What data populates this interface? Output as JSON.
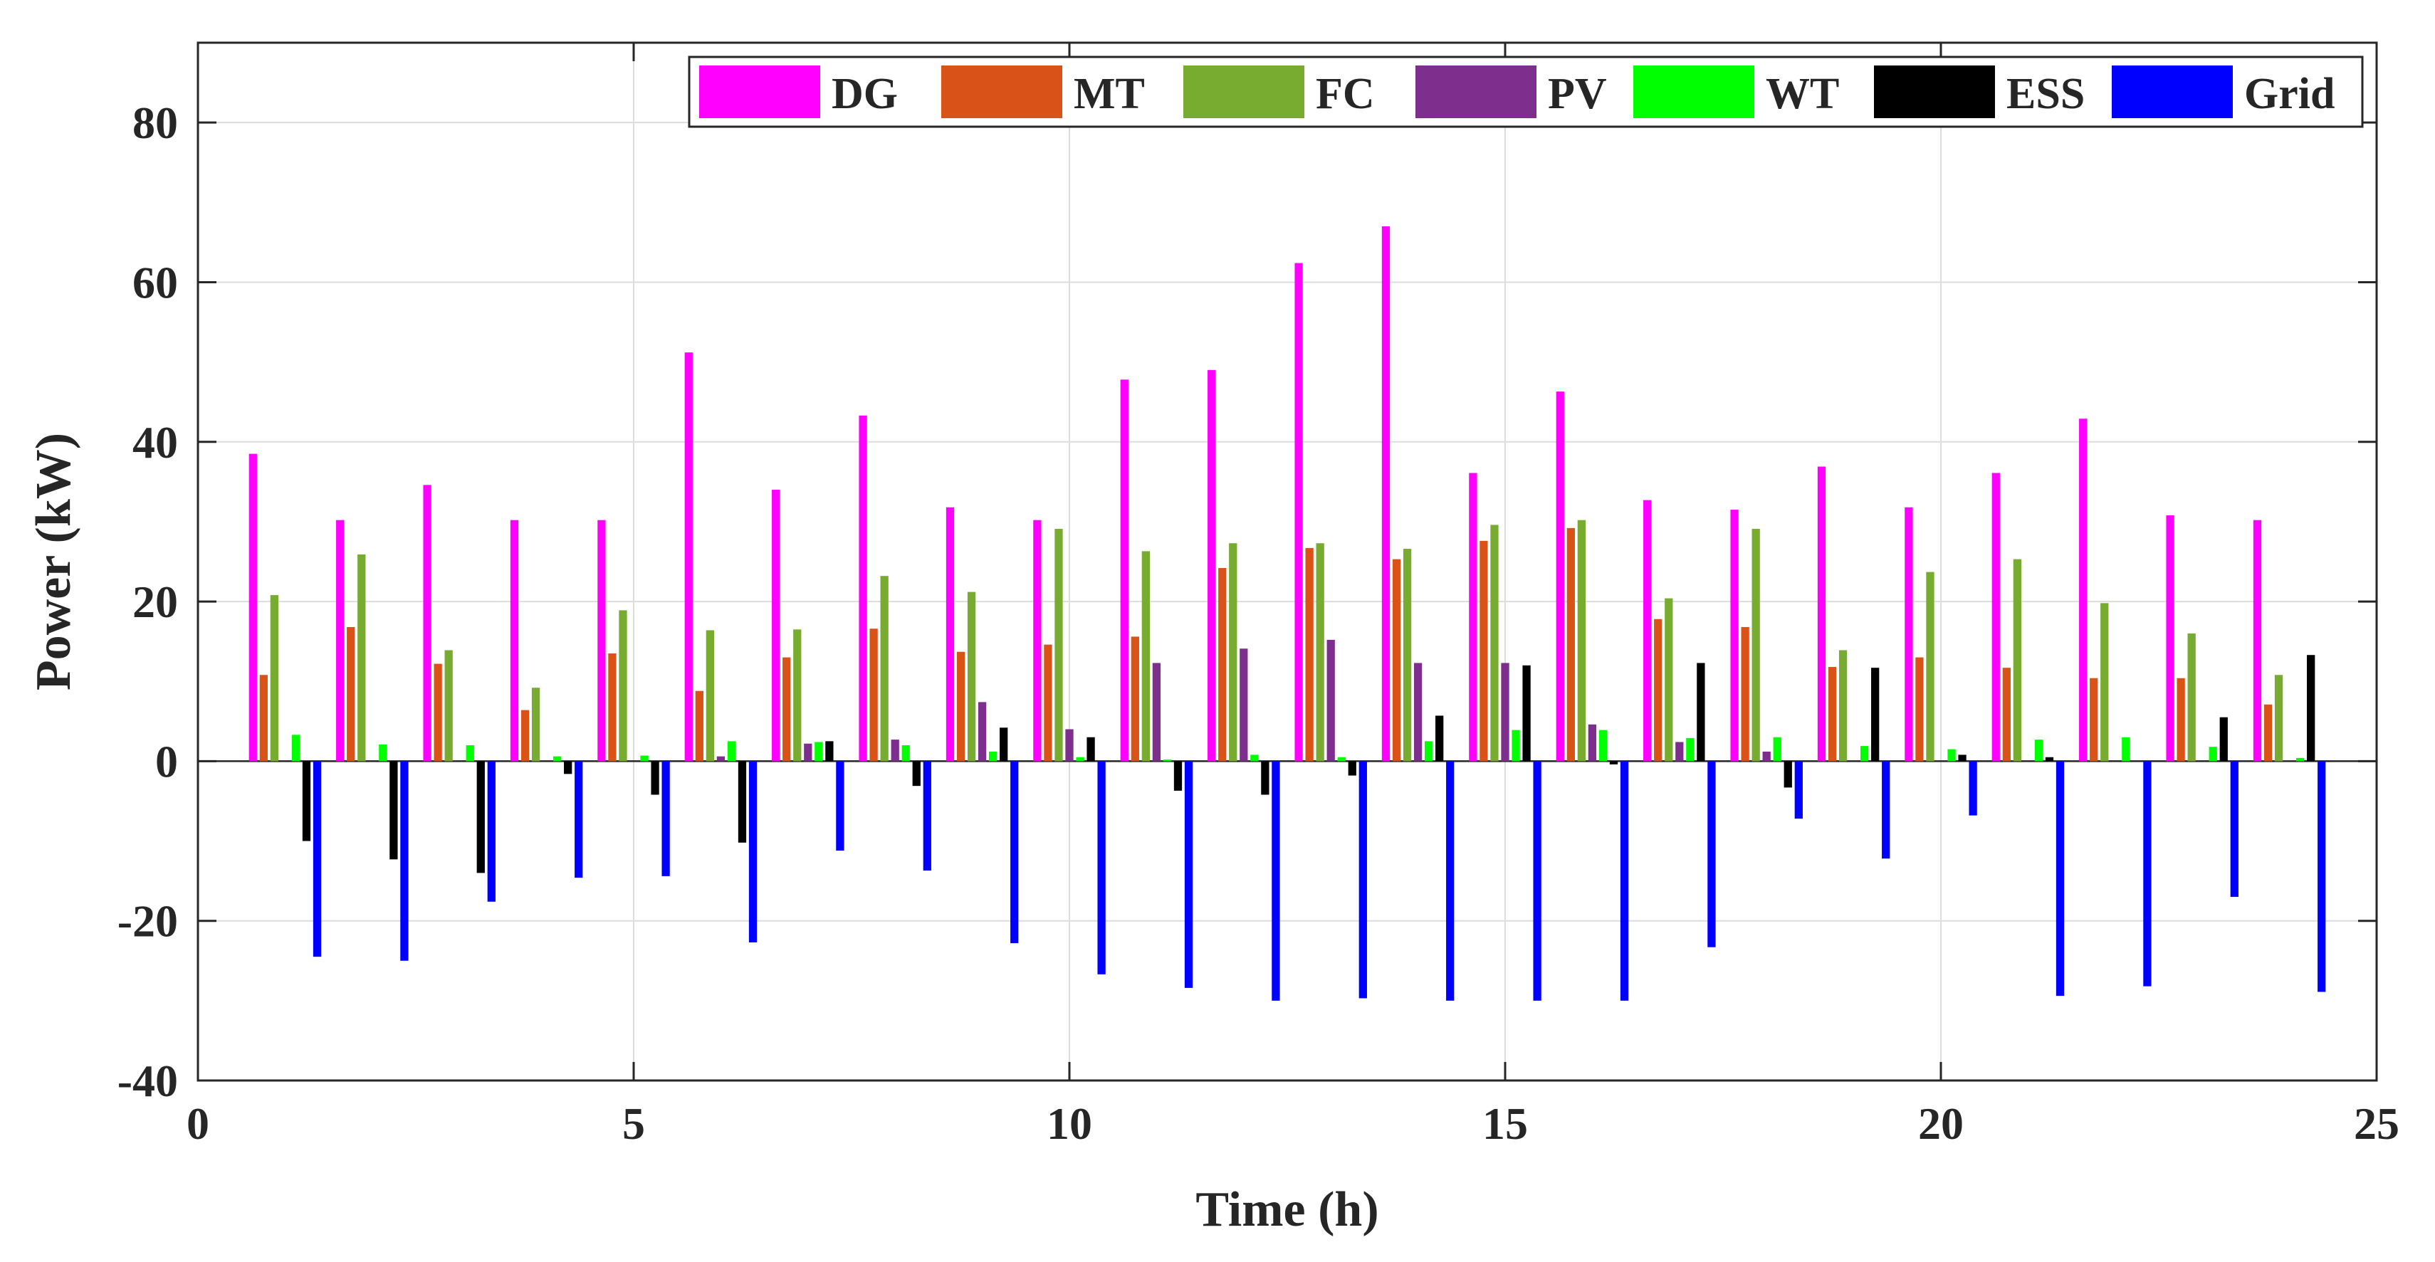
{
  "chart_data": {
    "type": "bar",
    "title": "",
    "xlabel": "Time (h)",
    "ylabel": "Power (kW)",
    "xlim": [
      0,
      25
    ],
    "ylim": [
      -40,
      90
    ],
    "xticks": [
      "0",
      "5",
      "10",
      "15",
      "20",
      "25"
    ],
    "xtick_values": [
      0,
      5,
      10,
      15,
      20,
      25
    ],
    "yticks": [
      "-40",
      "-20",
      "0",
      "20",
      "40",
      "60",
      "80"
    ],
    "ytick_values": [
      -40,
      -20,
      0,
      20,
      40,
      60,
      80
    ],
    "grid": true,
    "legend_position": "top-right",
    "x": [
      1,
      2,
      3,
      4,
      5,
      6,
      7,
      8,
      9,
      10,
      11,
      12,
      13,
      14,
      15,
      16,
      17,
      18,
      19,
      20,
      21,
      22,
      23,
      24
    ],
    "series": [
      {
        "name": "DG",
        "color": "#FF00FF",
        "values": [
          38.5,
          30.2,
          34.6,
          30.2,
          30.2,
          51.2,
          34.0,
          43.3,
          31.8,
          30.2,
          47.8,
          49.0,
          62.4,
          67.0,
          36.1,
          46.3,
          32.7,
          31.5,
          36.9,
          31.8,
          36.1,
          42.9,
          30.8,
          30.2
        ]
      },
      {
        "name": "MT",
        "color": "#D95319",
        "values": [
          10.8,
          16.8,
          12.2,
          6.4,
          13.5,
          8.8,
          13.0,
          16.6,
          13.7,
          14.6,
          15.6,
          24.2,
          26.7,
          25.3,
          27.6,
          29.2,
          17.8,
          16.8,
          11.8,
          13.0,
          11.7,
          10.4,
          10.4,
          7.1
        ]
      },
      {
        "name": "FC",
        "color": "#77AC30",
        "values": [
          20.8,
          25.9,
          13.9,
          9.2,
          18.9,
          16.4,
          16.5,
          23.2,
          21.2,
          29.1,
          26.3,
          27.3,
          27.3,
          26.6,
          29.6,
          30.2,
          20.4,
          29.1,
          13.9,
          23.7,
          25.3,
          19.8,
          16.0,
          10.8
        ]
      },
      {
        "name": "PV",
        "color": "#7E2F8E",
        "values": [
          0,
          0,
          0,
          0,
          0,
          0.6,
          2.2,
          2.7,
          7.4,
          4.0,
          12.3,
          14.1,
          15.2,
          12.3,
          12.3,
          4.6,
          2.4,
          1.2,
          0,
          0,
          0,
          0,
          0,
          0
        ]
      },
      {
        "name": "WT",
        "color": "#00FF00",
        "values": [
          3.3,
          2.1,
          2.0,
          0.6,
          0.7,
          2.5,
          2.4,
          2.0,
          1.2,
          0.5,
          0.2,
          0.8,
          0.5,
          2.5,
          3.9,
          3.9,
          2.9,
          3.0,
          1.9,
          1.5,
          2.7,
          3.0,
          1.8,
          0.4
        ]
      },
      {
        "name": "ESS",
        "color": "#000000",
        "values": [
          -10.0,
          -12.3,
          -14.0,
          -1.6,
          -4.2,
          -10.2,
          2.5,
          -3.1,
          4.2,
          3.0,
          -3.7,
          -4.2,
          -1.8,
          5.7,
          12.0,
          -0.4,
          12.3,
          -3.3,
          11.7,
          0.8,
          0.5,
          0,
          5.5,
          13.3
        ]
      },
      {
        "name": "Grid",
        "color": "#0000FF",
        "values": [
          -24.5,
          -25.0,
          -17.6,
          -14.6,
          -14.4,
          -22.7,
          -11.2,
          -13.7,
          -22.8,
          -26.7,
          -28.4,
          -30.0,
          -29.7,
          -30.0,
          -30.0,
          -30.0,
          -23.3,
          -7.2,
          -12.2,
          -6.8,
          -29.4,
          -28.2,
          -17.0,
          -28.9
        ]
      }
    ]
  }
}
